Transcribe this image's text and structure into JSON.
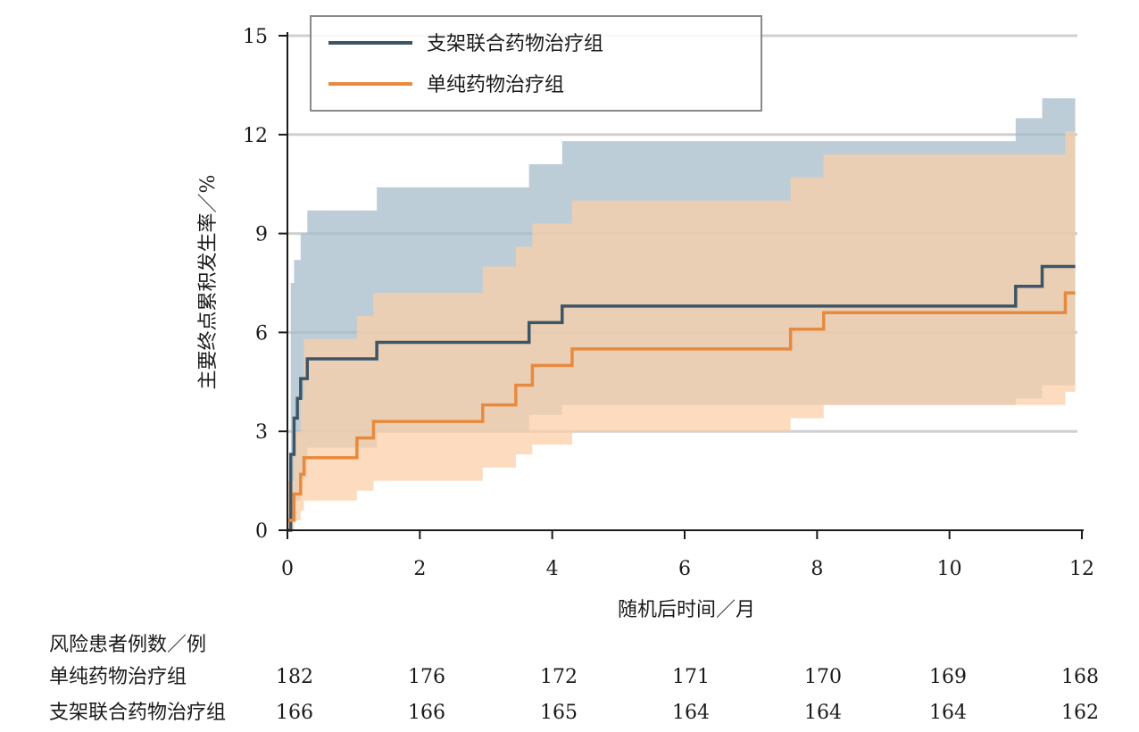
{
  "chart_data": {
    "type": "line",
    "subtype": "kaplan-meier cumulative incidence with confidence bands",
    "xlabel": "随机后时间／月",
    "ylabel": "主要终点累积发生率／%",
    "xlim": [
      0,
      12
    ],
    "ylim": [
      0,
      15
    ],
    "xticks": [
      0,
      2,
      4,
      6,
      8,
      10,
      12
    ],
    "yticks": [
      0,
      3,
      6,
      9,
      12,
      15
    ],
    "grid": "horizontal",
    "legend": "top-left inside",
    "series": [
      {
        "name": "支架联合药物治疗组",
        "color": "#3d5566",
        "band_color": "#a7bcc9",
        "steps": [
          [
            0,
            0
          ],
          [
            0.05,
            2.3
          ],
          [
            0.1,
            3.4
          ],
          [
            0.15,
            4.0
          ],
          [
            0.2,
            4.6
          ],
          [
            0.3,
            5.2
          ],
          [
            1.35,
            5.7
          ],
          [
            3.65,
            6.3
          ],
          [
            4.15,
            6.8
          ],
          [
            11.0,
            7.4
          ],
          [
            11.4,
            8.0
          ],
          [
            11.9,
            8.0
          ]
        ],
        "upper": [
          [
            0,
            0.5
          ],
          [
            0.05,
            7.5
          ],
          [
            0.1,
            8.2
          ],
          [
            0.2,
            9.0
          ],
          [
            0.3,
            9.7
          ],
          [
            1.35,
            10.4
          ],
          [
            3.65,
            11.1
          ],
          [
            4.15,
            11.8
          ],
          [
            11.0,
            12.5
          ],
          [
            11.4,
            13.1
          ],
          [
            11.9,
            13.1
          ]
        ],
        "lower": [
          [
            0,
            0
          ],
          [
            0.05,
            0.5
          ],
          [
            0.1,
            0.9
          ],
          [
            0.2,
            1.6
          ],
          [
            0.3,
            2.5
          ],
          [
            1.35,
            3.0
          ],
          [
            3.65,
            3.5
          ],
          [
            4.15,
            3.8
          ],
          [
            11.0,
            4.0
          ],
          [
            11.4,
            4.4
          ],
          [
            11.9,
            4.4
          ]
        ]
      },
      {
        "name": "单纯药物治疗组",
        "color": "#e88a3e",
        "band_color": "#fbcfa8",
        "steps": [
          [
            0,
            0.3
          ],
          [
            0.1,
            1.1
          ],
          [
            0.2,
            1.7
          ],
          [
            0.25,
            2.2
          ],
          [
            1.05,
            2.8
          ],
          [
            1.3,
            3.3
          ],
          [
            2.95,
            3.8
          ],
          [
            3.45,
            4.4
          ],
          [
            3.7,
            5.0
          ],
          [
            4.3,
            5.5
          ],
          [
            7.6,
            6.1
          ],
          [
            8.1,
            6.6
          ],
          [
            11.75,
            7.2
          ],
          [
            11.9,
            7.2
          ]
        ],
        "upper": [
          [
            0,
            1.5
          ],
          [
            0.1,
            3.0
          ],
          [
            0.2,
            4.0
          ],
          [
            0.25,
            5.8
          ],
          [
            1.05,
            6.5
          ],
          [
            1.3,
            7.2
          ],
          [
            2.95,
            8.0
          ],
          [
            3.45,
            8.6
          ],
          [
            3.7,
            9.3
          ],
          [
            4.3,
            10.0
          ],
          [
            7.6,
            10.7
          ],
          [
            8.1,
            11.4
          ],
          [
            11.75,
            12.1
          ],
          [
            11.9,
            12.1
          ]
        ],
        "lower": [
          [
            0,
            0
          ],
          [
            0.1,
            0.3
          ],
          [
            0.2,
            0.6
          ],
          [
            0.25,
            0.9
          ],
          [
            1.05,
            1.2
          ],
          [
            1.3,
            1.5
          ],
          [
            2.95,
            1.9
          ],
          [
            3.45,
            2.3
          ],
          [
            3.7,
            2.6
          ],
          [
            4.3,
            3.0
          ],
          [
            7.6,
            3.4
          ],
          [
            8.1,
            3.8
          ],
          [
            11.75,
            4.2
          ],
          [
            11.9,
            4.8
          ]
        ]
      }
    ]
  },
  "risk_table": {
    "title": "风险患者例数／例",
    "rows": [
      {
        "label": "单纯药物治疗组",
        "values": [
          "182",
          "176",
          "172",
          "171",
          "170",
          "169",
          "168"
        ]
      },
      {
        "label": "支架联合药物治疗组",
        "values": [
          "166",
          "166",
          "165",
          "164",
          "164",
          "164",
          "162"
        ]
      }
    ]
  }
}
